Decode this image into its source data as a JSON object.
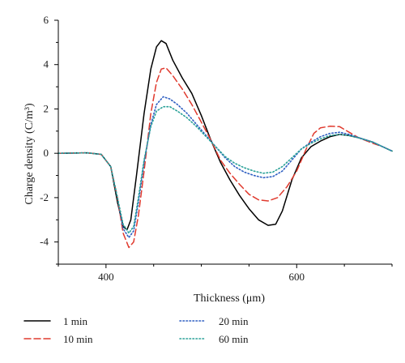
{
  "chart_data": {
    "type": "line",
    "xlabel": "Thickness (μm)",
    "ylabel": "Charge density (C/m³)",
    "xlim": [
      350,
      700
    ],
    "ylim": [
      -5,
      6
    ],
    "xticks": [
      400,
      600
    ],
    "yticks": [
      -4,
      -2,
      0,
      2,
      4,
      6
    ],
    "grid": false,
    "legend_position": "bottom",
    "series": [
      {
        "name": "1 min",
        "color": "#000000",
        "style": "solid",
        "points": [
          [
            350,
            0
          ],
          [
            380,
            0.02
          ],
          [
            395,
            -0.05
          ],
          [
            405,
            -0.6
          ],
          [
            412,
            -2.2
          ],
          [
            418,
            -3.3
          ],
          [
            422,
            -3.45
          ],
          [
            426,
            -3.0
          ],
          [
            432,
            -1.0
          ],
          [
            440,
            1.8
          ],
          [
            447,
            3.8
          ],
          [
            453,
            4.8
          ],
          [
            458,
            5.08
          ],
          [
            463,
            4.95
          ],
          [
            470,
            4.2
          ],
          [
            480,
            3.4
          ],
          [
            490,
            2.7
          ],
          [
            500,
            1.7
          ],
          [
            510,
            0.6
          ],
          [
            520,
            -0.4
          ],
          [
            530,
            -1.2
          ],
          [
            540,
            -1.9
          ],
          [
            550,
            -2.5
          ],
          [
            560,
            -3.0
          ],
          [
            570,
            -3.25
          ],
          [
            578,
            -3.2
          ],
          [
            585,
            -2.6
          ],
          [
            595,
            -1.2
          ],
          [
            605,
            -0.2
          ],
          [
            615,
            0.3
          ],
          [
            625,
            0.55
          ],
          [
            635,
            0.75
          ],
          [
            645,
            0.85
          ],
          [
            655,
            0.8
          ],
          [
            665,
            0.7
          ],
          [
            680,
            0.5
          ],
          [
            690,
            0.3
          ],
          [
            700,
            0.1
          ]
        ]
      },
      {
        "name": "10 min",
        "color": "#e03a2e",
        "style": "dashed",
        "points": [
          [
            350,
            0
          ],
          [
            380,
            0.02
          ],
          [
            395,
            -0.05
          ],
          [
            405,
            -0.6
          ],
          [
            412,
            -2.0
          ],
          [
            418,
            -3.6
          ],
          [
            424,
            -4.25
          ],
          [
            429,
            -4.0
          ],
          [
            434,
            -2.8
          ],
          [
            440,
            -0.8
          ],
          [
            447,
            1.8
          ],
          [
            453,
            3.2
          ],
          [
            458,
            3.8
          ],
          [
            463,
            3.85
          ],
          [
            470,
            3.5
          ],
          [
            480,
            2.9
          ],
          [
            490,
            2.2
          ],
          [
            500,
            1.4
          ],
          [
            510,
            0.6
          ],
          [
            520,
            -0.3
          ],
          [
            530,
            -0.9
          ],
          [
            540,
            -1.4
          ],
          [
            550,
            -1.85
          ],
          [
            560,
            -2.1
          ],
          [
            570,
            -2.15
          ],
          [
            580,
            -2.0
          ],
          [
            590,
            -1.5
          ],
          [
            600,
            -0.8
          ],
          [
            610,
            0.2
          ],
          [
            618,
            0.9
          ],
          [
            625,
            1.15
          ],
          [
            635,
            1.22
          ],
          [
            645,
            1.2
          ],
          [
            655,
            0.95
          ],
          [
            665,
            0.7
          ],
          [
            680,
            0.45
          ],
          [
            690,
            0.3
          ],
          [
            700,
            0.1
          ]
        ]
      },
      {
        "name": "20 min",
        "color": "#2e5fc2",
        "style": "dotted",
        "points": [
          [
            350,
            0
          ],
          [
            380,
            0.02
          ],
          [
            395,
            -0.05
          ],
          [
            405,
            -0.6
          ],
          [
            412,
            -2.0
          ],
          [
            418,
            -3.4
          ],
          [
            424,
            -3.8
          ],
          [
            429,
            -3.5
          ],
          [
            434,
            -2.2
          ],
          [
            440,
            -0.4
          ],
          [
            447,
            1.3
          ],
          [
            453,
            2.2
          ],
          [
            460,
            2.55
          ],
          [
            467,
            2.45
          ],
          [
            475,
            2.2
          ],
          [
            485,
            1.8
          ],
          [
            495,
            1.3
          ],
          [
            505,
            0.8
          ],
          [
            515,
            0.3
          ],
          [
            525,
            -0.2
          ],
          [
            535,
            -0.6
          ],
          [
            545,
            -0.85
          ],
          [
            555,
            -1.0
          ],
          [
            565,
            -1.1
          ],
          [
            575,
            -1.05
          ],
          [
            585,
            -0.8
          ],
          [
            595,
            -0.3
          ],
          [
            605,
            0.2
          ],
          [
            615,
            0.5
          ],
          [
            625,
            0.75
          ],
          [
            635,
            0.9
          ],
          [
            645,
            0.95
          ],
          [
            655,
            0.85
          ],
          [
            665,
            0.7
          ],
          [
            680,
            0.5
          ],
          [
            690,
            0.3
          ],
          [
            700,
            0.1
          ]
        ]
      },
      {
        "name": "60 min",
        "color": "#2aa198",
        "style": "dotted",
        "points": [
          [
            350,
            0
          ],
          [
            380,
            0.02
          ],
          [
            395,
            -0.05
          ],
          [
            405,
            -0.6
          ],
          [
            412,
            -2.0
          ],
          [
            418,
            -3.2
          ],
          [
            424,
            -3.6
          ],
          [
            429,
            -3.3
          ],
          [
            434,
            -2.0
          ],
          [
            440,
            -0.3
          ],
          [
            447,
            1.2
          ],
          [
            453,
            1.9
          ],
          [
            460,
            2.1
          ],
          [
            467,
            2.1
          ],
          [
            475,
            1.9
          ],
          [
            485,
            1.6
          ],
          [
            495,
            1.2
          ],
          [
            505,
            0.75
          ],
          [
            515,
            0.3
          ],
          [
            525,
            -0.15
          ],
          [
            535,
            -0.45
          ],
          [
            545,
            -0.65
          ],
          [
            555,
            -0.8
          ],
          [
            565,
            -0.9
          ],
          [
            575,
            -0.85
          ],
          [
            585,
            -0.6
          ],
          [
            595,
            -0.2
          ],
          [
            605,
            0.2
          ],
          [
            615,
            0.45
          ],
          [
            625,
            0.65
          ],
          [
            635,
            0.8
          ],
          [
            645,
            0.85
          ],
          [
            655,
            0.8
          ],
          [
            665,
            0.7
          ],
          [
            680,
            0.5
          ],
          [
            690,
            0.3
          ],
          [
            700,
            0.1
          ]
        ]
      }
    ]
  }
}
